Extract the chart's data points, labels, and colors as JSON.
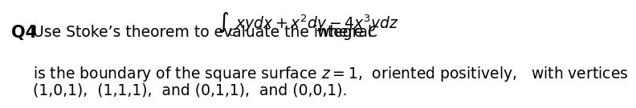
{
  "q_label": "Q4",
  "line1_prefix": "Use Stoke’s theorem to evaluate the integral ",
  "integral_expr": "$\\int_C xydx + x^2dy - 4x^3ydz$",
  "line1_suffix": "  where $C$",
  "line2": "is the boundary of the square surface $z=1$,  oriented positively,   with vertices",
  "line3": "(1,0,1),  (1,1,1),  and (0,1,1),  and (0,0,1).",
  "bg_color": "#ffffff",
  "text_color": "#000000",
  "font_size": 13.5,
  "q_font_size": 15
}
